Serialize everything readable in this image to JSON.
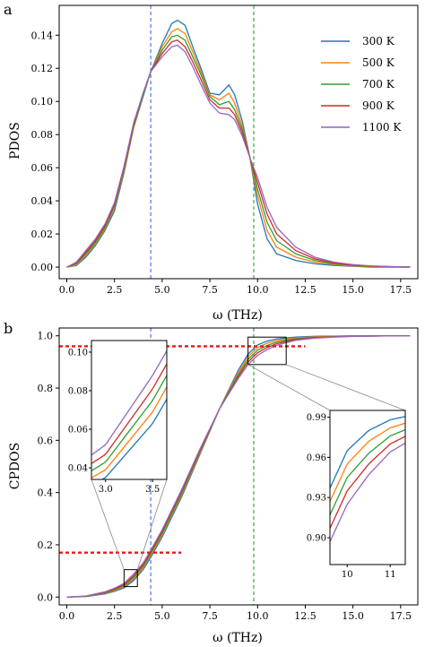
{
  "panel_labels": [
    "a",
    "b"
  ],
  "chart_data": [
    {
      "type": "line",
      "panel": "a",
      "xlabel": "ω (THz)",
      "ylabel": "PDOS",
      "xlim": [
        -0.4,
        18.4
      ],
      "ylim": [
        -0.007,
        0.158
      ],
      "xticks": [
        0.0,
        2.5,
        5.0,
        7.5,
        10.0,
        12.5,
        15.0,
        17.5
      ],
      "xtick_labels": [
        "0.0",
        "2.5",
        "5.0",
        "7.5",
        "10.0",
        "12.5",
        "15.0",
        "17.5"
      ],
      "yticks": [
        0.0,
        0.02,
        0.04,
        0.06,
        0.08,
        0.1,
        0.12,
        0.14
      ],
      "ytick_labels": [
        "0.00",
        "0.02",
        "0.04",
        "0.06",
        "0.08",
        "0.10",
        "0.12",
        "0.14"
      ],
      "vlines": [
        {
          "x": 4.4,
          "color": "#4169e1"
        },
        {
          "x": 9.8,
          "color": "#2ca02c"
        }
      ],
      "legend": {
        "placement": "upper right"
      },
      "series": [
        {
          "name": "300 K",
          "color": "#1f77b4",
          "x": [
            0,
            0.5,
            1.0,
            1.5,
            2.0,
            2.5,
            3.0,
            3.5,
            4.0,
            4.4,
            5.0,
            5.5,
            5.8,
            6.2,
            6.6,
            7.0,
            7.5,
            8.0,
            8.5,
            8.8,
            9.2,
            9.6,
            10.0,
            10.5,
            11.0,
            12.0,
            13.0,
            14.0,
            15.0,
            16.0,
            17.0,
            18.0
          ],
          "y": [
            0.0,
            0.001,
            0.006,
            0.013,
            0.022,
            0.034,
            0.057,
            0.084,
            0.103,
            0.118,
            0.135,
            0.147,
            0.149,
            0.146,
            0.133,
            0.121,
            0.105,
            0.104,
            0.11,
            0.104,
            0.088,
            0.066,
            0.038,
            0.017,
            0.008,
            0.004,
            0.002,
            0.001,
            0.0005,
            0.0,
            0.0,
            0.0
          ]
        },
        {
          "name": "500 K",
          "color": "#ff7f0e",
          "x": [
            0,
            0.5,
            1.0,
            1.5,
            2.0,
            2.5,
            3.0,
            3.5,
            4.0,
            4.4,
            5.0,
            5.5,
            5.8,
            6.2,
            6.6,
            7.0,
            7.5,
            8.0,
            8.5,
            8.8,
            9.2,
            9.6,
            10.0,
            10.5,
            11.0,
            12.0,
            13.0,
            14.0,
            15.0,
            16.0,
            17.0,
            18.0
          ],
          "y": [
            0.0,
            0.0015,
            0.007,
            0.014,
            0.023,
            0.036,
            0.058,
            0.084,
            0.104,
            0.118,
            0.133,
            0.142,
            0.144,
            0.141,
            0.13,
            0.119,
            0.104,
            0.101,
            0.105,
            0.099,
            0.085,
            0.066,
            0.043,
            0.022,
            0.012,
            0.006,
            0.003,
            0.0015,
            0.0007,
            0.0003,
            0.0001,
            0.0
          ]
        },
        {
          "name": "700 K",
          "color": "#2ca02c",
          "x": [
            0,
            0.5,
            1.0,
            1.5,
            2.0,
            2.5,
            3.0,
            3.5,
            4.0,
            4.4,
            5.0,
            5.5,
            5.8,
            6.2,
            6.6,
            7.0,
            7.5,
            8.0,
            8.5,
            8.8,
            9.2,
            9.6,
            10.0,
            10.5,
            11.0,
            12.0,
            13.0,
            14.0,
            15.0,
            16.0,
            17.0,
            18.0
          ],
          "y": [
            0.0,
            0.002,
            0.008,
            0.015,
            0.024,
            0.037,
            0.059,
            0.085,
            0.104,
            0.118,
            0.131,
            0.139,
            0.14,
            0.137,
            0.127,
            0.117,
            0.103,
            0.098,
            0.1,
            0.095,
            0.083,
            0.066,
            0.047,
            0.027,
            0.016,
            0.008,
            0.004,
            0.002,
            0.001,
            0.0005,
            0.0002,
            0.0
          ]
        },
        {
          "name": "900 K",
          "color": "#d62728",
          "x": [
            0,
            0.5,
            1.0,
            1.5,
            2.0,
            2.5,
            3.0,
            3.5,
            4.0,
            4.4,
            5.0,
            5.5,
            5.8,
            6.2,
            6.6,
            7.0,
            7.5,
            8.0,
            8.5,
            8.8,
            9.2,
            9.6,
            10.0,
            10.5,
            11.0,
            12.0,
            13.0,
            14.0,
            15.0,
            16.0,
            17.0,
            18.0
          ],
          "y": [
            0.0,
            0.0025,
            0.009,
            0.016,
            0.025,
            0.038,
            0.06,
            0.086,
            0.105,
            0.118,
            0.129,
            0.136,
            0.137,
            0.133,
            0.124,
            0.114,
            0.101,
            0.096,
            0.096,
            0.092,
            0.081,
            0.066,
            0.051,
            0.032,
            0.02,
            0.01,
            0.005,
            0.0025,
            0.0012,
            0.0006,
            0.0003,
            0.0
          ]
        },
        {
          "name": "1100 K",
          "color": "#9467bd",
          "x": [
            0,
            0.5,
            1.0,
            1.5,
            2.0,
            2.5,
            3.0,
            3.5,
            4.0,
            4.4,
            5.0,
            5.5,
            5.8,
            6.2,
            6.6,
            7.0,
            7.5,
            8.0,
            8.5,
            8.8,
            9.2,
            9.6,
            10.0,
            10.5,
            11.0,
            12.0,
            13.0,
            14.0,
            15.0,
            16.0,
            17.0,
            18.0
          ],
          "y": [
            0.0,
            0.003,
            0.01,
            0.017,
            0.026,
            0.039,
            0.061,
            0.087,
            0.105,
            0.118,
            0.127,
            0.133,
            0.134,
            0.13,
            0.121,
            0.111,
            0.099,
            0.093,
            0.092,
            0.089,
            0.079,
            0.066,
            0.054,
            0.036,
            0.024,
            0.012,
            0.006,
            0.003,
            0.0015,
            0.0007,
            0.0003,
            0.0
          ]
        }
      ]
    },
    {
      "type": "line",
      "panel": "b",
      "xlabel": "ω (THz)",
      "ylabel": "CPDOS",
      "xlim": [
        -0.4,
        18.4
      ],
      "ylim": [
        -0.03,
        1.03
      ],
      "xticks": [
        0.0,
        2.5,
        5.0,
        7.5,
        10.0,
        12.5,
        15.0,
        17.5
      ],
      "xtick_labels": [
        "0.0",
        "2.5",
        "5.0",
        "7.5",
        "10.0",
        "12.5",
        "15.0",
        "17.5"
      ],
      "yticks": [
        0.0,
        0.2,
        0.4,
        0.6,
        0.8,
        1.0
      ],
      "ytick_labels": [
        "0.0",
        "0.2",
        "0.4",
        "0.6",
        "0.8",
        "1.0"
      ],
      "vlines": [
        {
          "x": 4.4,
          "color": "#4169e1"
        },
        {
          "x": 9.8,
          "color": "#2ca02c"
        }
      ],
      "hlines": [
        {
          "y": 0.96,
          "x_from": -0.4,
          "x_to": 12.5,
          "color": "#e31a1c"
        },
        {
          "y": 0.17,
          "x_from": -0.4,
          "x_to": 6.0,
          "color": "#e31a1c"
        }
      ],
      "zoom_boxes": [
        {
          "x": [
            3.0,
            3.7
          ],
          "y": [
            0.04,
            0.105
          ]
        },
        {
          "x": [
            9.5,
            11.5
          ],
          "y": [
            0.89,
            0.995
          ]
        }
      ],
      "series": [
        {
          "name": "300 K",
          "color": "#1f77b4",
          "x": [
            0,
            1,
            2,
            2.5,
            3,
            3.5,
            4,
            4.4,
            5,
            6,
            7,
            8,
            9,
            9.5,
            10,
            10.5,
            11,
            12,
            13,
            14,
            15,
            16,
            17,
            18
          ],
          "y": [
            0.0,
            0.002,
            0.012,
            0.022,
            0.035,
            0.063,
            0.105,
            0.152,
            0.23,
            0.38,
            0.55,
            0.72,
            0.87,
            0.93,
            0.965,
            0.98,
            0.988,
            0.995,
            0.998,
            0.999,
            1.0,
            1.0,
            1.0,
            1.0
          ]
        },
        {
          "name": "500 K",
          "color": "#ff7f0e",
          "x": [
            0,
            1,
            2,
            2.5,
            3,
            3.5,
            4,
            4.4,
            5,
            6,
            7,
            8,
            9,
            9.5,
            10,
            10.5,
            11,
            12,
            13,
            14,
            15,
            16,
            17,
            18
          ],
          "y": [
            0.0,
            0.0025,
            0.014,
            0.025,
            0.039,
            0.069,
            0.112,
            0.16,
            0.238,
            0.388,
            0.555,
            0.72,
            0.86,
            0.92,
            0.955,
            0.972,
            0.982,
            0.992,
            0.996,
            0.998,
            0.999,
            1.0,
            1.0,
            1.0
          ]
        },
        {
          "name": "700 K",
          "color": "#2ca02c",
          "x": [
            0,
            1,
            2,
            2.5,
            3,
            3.5,
            4,
            4.4,
            5,
            6,
            7,
            8,
            9,
            9.5,
            10,
            10.5,
            11,
            12,
            13,
            14,
            15,
            16,
            17,
            18
          ],
          "y": [
            0.0,
            0.003,
            0.016,
            0.028,
            0.043,
            0.075,
            0.118,
            0.167,
            0.245,
            0.395,
            0.56,
            0.72,
            0.852,
            0.91,
            0.945,
            0.963,
            0.976,
            0.989,
            0.994,
            0.997,
            0.999,
            1.0,
            1.0,
            1.0
          ]
        },
        {
          "name": "900 K",
          "color": "#d62728",
          "x": [
            0,
            1,
            2,
            2.5,
            3,
            3.5,
            4,
            4.4,
            5,
            6,
            7,
            8,
            9,
            9.5,
            10,
            10.5,
            11,
            12,
            13,
            14,
            15,
            16,
            17,
            18
          ],
          "y": [
            0.0,
            0.0035,
            0.018,
            0.031,
            0.047,
            0.081,
            0.124,
            0.173,
            0.252,
            0.402,
            0.565,
            0.72,
            0.845,
            0.9,
            0.935,
            0.955,
            0.97,
            0.986,
            0.993,
            0.996,
            0.998,
            0.999,
            1.0,
            1.0
          ]
        },
        {
          "name": "1100 K",
          "color": "#9467bd",
          "x": [
            0,
            1,
            2,
            2.5,
            3,
            3.5,
            4,
            4.4,
            5,
            6,
            7,
            8,
            9,
            9.5,
            10,
            10.5,
            11,
            12,
            13,
            14,
            15,
            16,
            17,
            18
          ],
          "y": [
            0.0,
            0.004,
            0.02,
            0.034,
            0.052,
            0.088,
            0.13,
            0.179,
            0.258,
            0.408,
            0.57,
            0.72,
            0.838,
            0.89,
            0.925,
            0.947,
            0.964,
            0.983,
            0.991,
            0.995,
            0.998,
            0.999,
            1.0,
            1.0
          ]
        }
      ]
    }
  ],
  "insets": [
    {
      "name": "left-inset",
      "xlim": [
        2.85,
        3.65
      ],
      "ylim": [
        0.034,
        0.106
      ],
      "xticks": [
        3.0,
        3.5
      ],
      "xtick_labels": [
        "3.0",
        "3.5"
      ],
      "yticks": [
        0.04,
        0.06,
        0.08,
        0.1
      ],
      "ytick_labels": [
        "0.04",
        "0.06",
        "0.08",
        "0.10"
      ]
    },
    {
      "name": "right-inset",
      "xlim": [
        9.6,
        11.35
      ],
      "ylim": [
        0.88,
        0.995
      ],
      "xticks": [
        10,
        11
      ],
      "xtick_labels": [
        "10",
        "11"
      ],
      "yticks": [
        0.9,
        0.93,
        0.96,
        0.99
      ],
      "ytick_labels": [
        "0.90",
        "0.93",
        "0.96",
        "0.99"
      ]
    }
  ]
}
